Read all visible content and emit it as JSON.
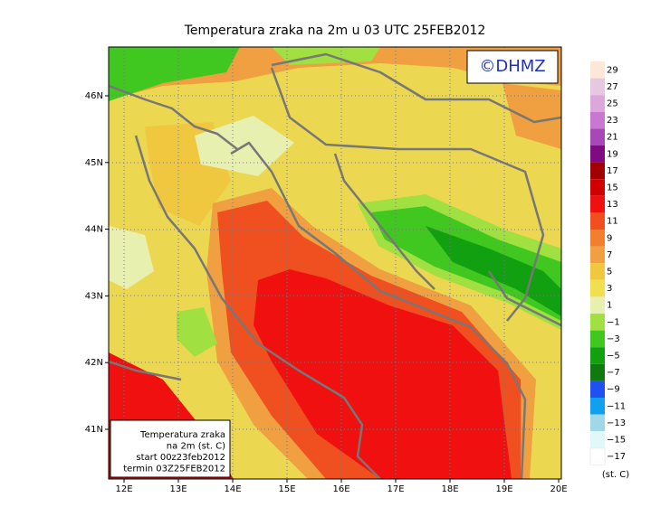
{
  "map": {
    "title": "Temperatura zraka na 2m u 03 UTC 25FEB2012",
    "credit": "©DHMZ",
    "lat_labels": [
      "46N",
      "45N",
      "44N",
      "43N",
      "42N",
      "41N"
    ],
    "lon_labels": [
      "12E",
      "13E",
      "14E",
      "15E",
      "16E",
      "17E",
      "18E",
      "19E",
      "20E"
    ],
    "info_box": [
      "Temperatura zraka",
      "na 2m (st. C)",
      "start 00z23feb2012",
      "termin 03Z25FEB2012"
    ],
    "legend": {
      "unit": "(st. C)",
      "items": [
        {
          "label": "29",
          "color": "#fde8d8"
        },
        {
          "label": "27",
          "color": "#e6c8e0"
        },
        {
          "label": "25",
          "color": "#dca8dc"
        },
        {
          "label": "23",
          "color": "#c878d0"
        },
        {
          "label": "21",
          "color": "#a848b8"
        },
        {
          "label": "19",
          "color": "#800a80"
        },
        {
          "label": "17",
          "color": "#a00000"
        },
        {
          "label": "15",
          "color": "#d00000"
        },
        {
          "label": "13",
          "color": "#f01010"
        },
        {
          "label": "11",
          "color": "#f05020"
        },
        {
          "label": "9",
          "color": "#f08030"
        },
        {
          "label": "7",
          "color": "#f0a040"
        },
        {
          "label": "5",
          "color": "#f0c840"
        },
        {
          "label": "3",
          "color": "#f0e050"
        },
        {
          "label": "1",
          "color": "#e8f0b0"
        },
        {
          "label": "−1",
          "color": "#a0e040"
        },
        {
          "label": "−3",
          "color": "#40c820"
        },
        {
          "label": "−5",
          "color": "#10a010"
        },
        {
          "label": "−7",
          "color": "#107a10"
        },
        {
          "label": "−9",
          "color": "#2050f0"
        },
        {
          "label": "−11",
          "color": "#10a0f0"
        },
        {
          "label": "−13",
          "color": "#a0d8e8"
        },
        {
          "label": "−15",
          "color": "#e0f8f8"
        },
        {
          "label": "−17",
          "color": "#ffffff"
        }
      ]
    }
  }
}
